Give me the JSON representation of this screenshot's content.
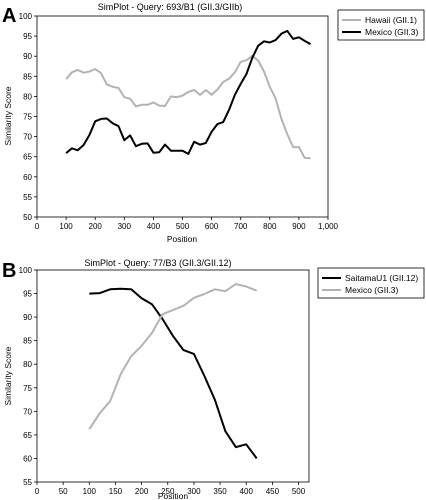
{
  "panels": [
    {
      "letter": "A"
    },
    {
      "letter": "B"
    }
  ],
  "chart_data": [
    {
      "type": "line",
      "title": "SimPlot - Query: 693/B1 (GII.3/GIIb)",
      "xlabel": "Position",
      "ylabel": "Similarity Score",
      "xlim": [
        0,
        1000
      ],
      "ylim": [
        50,
        100
      ],
      "xticks": [
        0,
        100,
        200,
        300,
        400,
        500,
        600,
        700,
        800,
        900,
        1000
      ],
      "xtick_labels": [
        "0",
        "100",
        "200",
        "300",
        "400",
        "500",
        "600",
        "700",
        "800",
        "900",
        "1,000"
      ],
      "yticks": [
        50,
        55,
        60,
        65,
        70,
        75,
        80,
        85,
        90,
        95,
        100
      ],
      "grid": false,
      "legend_position": "top-right",
      "series": [
        {
          "name": "Hawaii (GII.1)",
          "color": "#b3b3b3",
          "x": [
            100,
            120,
            140,
            160,
            180,
            200,
            220,
            240,
            260,
            280,
            300,
            320,
            340,
            360,
            380,
            400,
            420,
            440,
            460,
            480,
            500,
            520,
            540,
            560,
            580,
            600,
            620,
            640,
            660,
            680,
            700,
            720,
            740,
            760,
            780,
            800,
            820,
            840,
            860,
            880,
            900,
            920,
            940
          ],
          "y": [
            84.3,
            86.0,
            86.6,
            85.9,
            86.2,
            86.8,
            85.8,
            83.0,
            82.4,
            82.1,
            79.8,
            79.4,
            77.5,
            77.9,
            77.9,
            78.5,
            77.7,
            77.6,
            80.0,
            79.8,
            80.2,
            81.1,
            81.6,
            80.4,
            81.6,
            80.4,
            81.7,
            83.6,
            84.4,
            86.0,
            88.6,
            89.0,
            90.1,
            88.9,
            86.2,
            82.4,
            79.5,
            74.4,
            70.6,
            67.4,
            67.4,
            64.7,
            64.6
          ]
        },
        {
          "name": "Mexico (GII.3)",
          "color": "#000000",
          "x": [
            100,
            120,
            140,
            160,
            180,
            200,
            220,
            240,
            260,
            280,
            300,
            320,
            340,
            360,
            380,
            400,
            420,
            440,
            460,
            480,
            500,
            520,
            540,
            560,
            580,
            600,
            620,
            640,
            660,
            680,
            700,
            720,
            740,
            760,
            780,
            800,
            820,
            840,
            860,
            880,
            900,
            920,
            940
          ],
          "y": [
            65.9,
            67.1,
            66.6,
            67.9,
            70.4,
            73.8,
            74.4,
            74.5,
            73.3,
            72.6,
            69.1,
            70.3,
            67.6,
            68.2,
            68.3,
            66.0,
            66.1,
            68.0,
            66.5,
            66.5,
            66.5,
            65.7,
            68.7,
            68.0,
            68.4,
            71.2,
            73.1,
            73.6,
            76.7,
            80.4,
            83.1,
            85.6,
            89.6,
            92.6,
            93.7,
            93.4,
            94.0,
            95.6,
            96.3,
            94.3,
            94.7,
            93.8,
            93.0
          ]
        }
      ]
    },
    {
      "type": "line",
      "title": "SimPlot - Query: 77/B3 (GII.3/GII.12)",
      "xlabel": "Position",
      "ylabel": "Similarity Score",
      "xlim": [
        0,
        520
      ],
      "ylim": [
        55,
        100
      ],
      "xticks": [
        0,
        50,
        100,
        150,
        200,
        250,
        300,
        350,
        400,
        450,
        500
      ],
      "xtick_labels": [
        "0",
        "50",
        "100",
        "150",
        "200",
        "250",
        "300",
        "350",
        "400",
        "450",
        "500"
      ],
      "yticks": [
        55,
        60,
        65,
        70,
        75,
        80,
        85,
        90,
        95,
        100
      ],
      "grid": false,
      "legend_position": "top-right",
      "series": [
        {
          "name": "SaitamaU1 (GII.12)",
          "color": "#000000",
          "x": [
            100,
            120,
            140,
            160,
            180,
            200,
            220,
            240,
            260,
            280,
            300,
            320,
            340,
            360,
            380,
            400,
            420
          ],
          "y": [
            95.0,
            95.1,
            95.9,
            96.0,
            95.9,
            94.0,
            92.7,
            89.6,
            86.0,
            83.0,
            82.2,
            77.5,
            72.5,
            65.8,
            62.4,
            63.0,
            60.0
          ]
        },
        {
          "name": "Mexico (GII.3)",
          "color": "#b3b3b3",
          "x": [
            100,
            120,
            140,
            160,
            180,
            200,
            220,
            240,
            260,
            280,
            300,
            320,
            340,
            360,
            380,
            400,
            420
          ],
          "y": [
            66.2,
            69.6,
            72.2,
            77.9,
            81.7,
            83.9,
            86.7,
            90.6,
            91.5,
            92.4,
            94.1,
            94.9,
            95.9,
            95.5,
            97.0,
            96.5,
            95.6
          ]
        }
      ]
    }
  ]
}
